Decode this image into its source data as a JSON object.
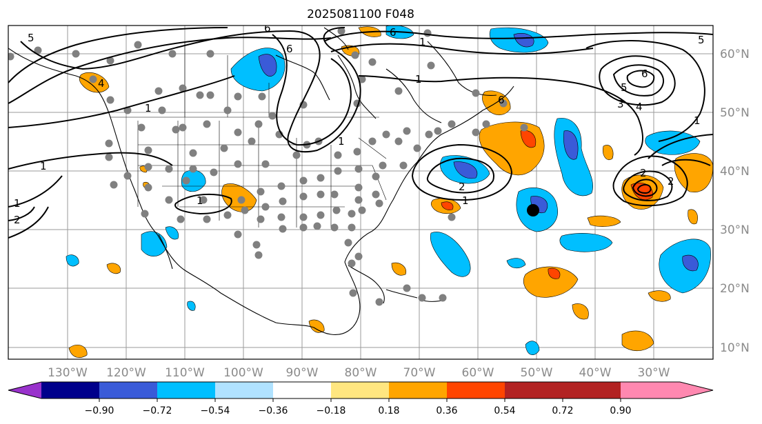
{
  "title": "2025081100 F048",
  "map": {
    "lat_labels": [
      "60°N",
      "50°N",
      "40°N",
      "30°N",
      "20°N",
      "10°N"
    ],
    "lon_labels": [
      "130°W",
      "120°W",
      "110°W",
      "100°W",
      "90°W",
      "80°W",
      "70°W",
      "60°W",
      "50°W",
      "40°W",
      "30°W"
    ],
    "contour_labels": [
      "5",
      "6",
      "6",
      "6",
      "6",
      "5",
      "4",
      "1",
      "1",
      "1",
      "1",
      "1",
      "1",
      "2",
      "2",
      "1",
      "3",
      "4",
      "5",
      "6",
      "1",
      "2",
      "2",
      "1"
    ],
    "station_marker_color": "#808080",
    "center_marker_color": "#000000"
  },
  "colorbar": {
    "tick_labels": [
      "−0.90",
      "−0.72",
      "−0.54",
      "−0.36",
      "−0.18",
      "0.18",
      "0.36",
      "0.54",
      "0.72",
      "0.90"
    ],
    "colors": [
      "#9932cc",
      "#00008b",
      "#3a5bd8",
      "#00bfff",
      "#b0e2ff",
      "#ffffff",
      "#ffe680",
      "#ffa500",
      "#ff4500",
      "#b22222",
      "#ff88b0"
    ]
  }
}
